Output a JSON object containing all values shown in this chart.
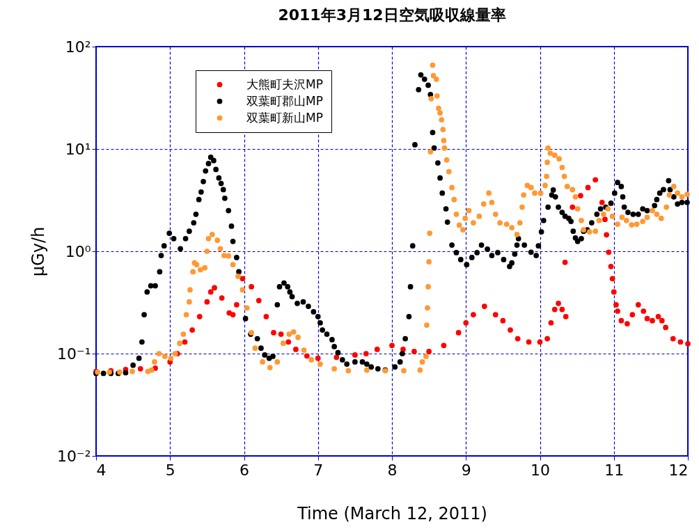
{
  "chart_data": {
    "type": "scatter",
    "title": "2011年3月12日空気吸収線量率",
    "xlabel": "Time (March 12, 2011)",
    "ylabel": "μGy/h",
    "xlim": [
      4,
      12
    ],
    "xticks": [
      4,
      5,
      6,
      7,
      8,
      9,
      10,
      11,
      12
    ],
    "ylim": [
      0.01,
      100
    ],
    "log": "y",
    "yticks": [
      {
        "value": 0.01,
        "label": "10⁻²"
      },
      {
        "value": 0.1,
        "label": "10⁻¹"
      },
      {
        "value": 1,
        "label": "10⁰"
      },
      {
        "value": 10,
        "label": "10¹"
      },
      {
        "value": 100,
        "label": "10²"
      }
    ],
    "grid": true,
    "legend": "top left",
    "marker": "circle",
    "series": [
      {
        "name": "大熊町夫沢MP",
        "color": "#ff0000",
        "x": [
          4.0,
          4.2,
          4.4,
          4.6,
          4.8,
          5.0,
          5.1,
          5.2,
          5.3,
          5.4,
          5.5,
          5.55,
          5.6,
          5.7,
          5.8,
          5.85,
          5.9,
          5.98,
          6.1,
          6.2,
          6.3,
          6.4,
          6.5,
          6.6,
          6.7,
          6.85,
          7.0,
          7.25,
          7.5,
          7.65,
          7.8,
          8.0,
          8.15,
          8.3,
          8.5,
          8.7,
          8.9,
          9.0,
          9.1,
          9.25,
          9.4,
          9.5,
          9.6,
          9.7,
          9.85,
          10.0,
          10.1,
          10.15,
          10.2,
          10.25,
          10.3,
          10.35,
          10.34,
          10.44,
          10.55,
          10.65,
          10.75,
          10.84,
          10.88,
          10.9,
          10.93,
          10.96,
          10.98,
          11.0,
          11.03,
          11.05,
          11.1,
          11.18,
          11.25,
          11.33,
          11.4,
          11.45,
          11.52,
          11.6,
          11.65,
          11.7,
          11.8,
          11.9,
          12.0
        ],
        "values": [
          0.067,
          0.068,
          0.07,
          0.071,
          0.072,
          0.083,
          0.1,
          0.13,
          0.17,
          0.23,
          0.32,
          0.4,
          0.44,
          0.35,
          0.25,
          0.24,
          0.3,
          0.54,
          0.45,
          0.33,
          0.23,
          0.16,
          0.155,
          0.13,
          0.11,
          0.095,
          0.09,
          0.092,
          0.097,
          0.1,
          0.11,
          0.12,
          0.11,
          0.105,
          0.105,
          0.12,
          0.16,
          0.2,
          0.24,
          0.29,
          0.24,
          0.21,
          0.17,
          0.14,
          0.13,
          0.13,
          0.14,
          0.2,
          0.27,
          0.31,
          0.27,
          0.23,
          0.78,
          2.7,
          3.5,
          4.2,
          5.0,
          3.0,
          2.05,
          1.45,
          0.98,
          0.71,
          0.54,
          0.4,
          0.3,
          0.26,
          0.21,
          0.196,
          0.24,
          0.3,
          0.26,
          0.22,
          0.21,
          0.23,
          0.21,
          0.18,
          0.14,
          0.13,
          0.125
        ]
      },
      {
        "name": "双葉町郡山MP",
        "color": "#000000",
        "x": [
          4.0,
          4.1,
          4.2,
          4.3,
          4.4,
          4.5,
          4.58,
          4.62,
          4.65,
          4.69,
          4.74,
          4.8,
          4.86,
          4.88,
          4.92,
          4.99,
          5.05,
          5.14,
          5.21,
          5.26,
          5.32,
          5.35,
          5.39,
          5.42,
          5.45,
          5.48,
          5.52,
          5.55,
          5.59,
          5.62,
          5.66,
          5.69,
          5.72,
          5.74,
          5.79,
          5.83,
          5.85,
          5.9,
          5.93,
          6.02,
          6.09,
          6.18,
          6.23,
          6.28,
          6.34,
          6.39,
          6.45,
          6.48,
          6.54,
          6.59,
          6.62,
          6.65,
          6.72,
          6.8,
          6.87,
          6.94,
          7.0,
          7.03,
          7.06,
          7.12,
          7.19,
          7.22,
          7.27,
          7.33,
          7.39,
          7.5,
          7.6,
          7.66,
          7.72,
          7.81,
          7.91,
          8.04,
          8.11,
          8.14,
          8.18,
          8.23,
          8.25,
          8.28,
          8.31,
          8.36,
          8.39,
          8.44,
          8.49,
          8.52,
          8.55,
          8.57,
          8.62,
          8.65,
          8.68,
          8.73,
          8.75,
          8.81,
          8.87,
          8.93,
          9.01,
          9.08,
          9.15,
          9.21,
          9.29,
          9.35,
          9.43,
          9.51,
          9.59,
          9.62,
          9.66,
          9.69,
          9.71,
          9.79,
          9.88,
          9.95,
          9.98,
          10.02,
          10.05,
          10.11,
          10.16,
          10.18,
          10.21,
          10.25,
          10.3,
          10.34,
          10.39,
          10.42,
          10.45,
          10.48,
          10.51,
          10.56,
          10.59,
          10.64,
          10.7,
          10.77,
          10.82,
          10.89,
          10.96,
          11.01,
          11.05,
          11.1,
          11.12,
          11.14,
          11.19,
          11.26,
          11.33,
          11.39,
          11.45,
          11.55,
          11.58,
          11.62,
          11.67,
          11.74,
          11.76,
          11.81,
          11.86,
          11.92,
          11.99
        ],
        "values": [
          0.064,
          0.064,
          0.064,
          0.064,
          0.065,
          0.077,
          0.09,
          0.13,
          0.24,
          0.4,
          0.46,
          0.46,
          0.63,
          0.91,
          1.13,
          1.5,
          1.33,
          1.06,
          1.33,
          1.57,
          1.9,
          2.3,
          3.2,
          3.8,
          4.8,
          6.1,
          7.2,
          8.3,
          7.7,
          6.3,
          5.2,
          4.6,
          4.0,
          3.3,
          2.5,
          1.76,
          1.25,
          0.87,
          0.63,
          0.22,
          0.155,
          0.14,
          0.113,
          0.097,
          0.09,
          0.094,
          0.3,
          0.45,
          0.49,
          0.45,
          0.4,
          0.36,
          0.31,
          0.32,
          0.29,
          0.256,
          0.23,
          0.2,
          0.17,
          0.155,
          0.137,
          0.117,
          0.102,
          0.087,
          0.079,
          0.083,
          0.083,
          0.079,
          0.074,
          0.071,
          0.069,
          0.074,
          0.083,
          0.1,
          0.14,
          0.23,
          0.45,
          1.13,
          11,
          38,
          53,
          48,
          42,
          34,
          14.5,
          10.2,
          7.3,
          5.2,
          3.7,
          2.6,
          1.93,
          1.15,
          0.97,
          0.83,
          0.74,
          0.87,
          0.97,
          1.15,
          1.05,
          0.91,
          0.97,
          0.83,
          0.71,
          0.77,
          0.94,
          1.15,
          1.33,
          1.15,
          0.98,
          0.91,
          1.13,
          1.55,
          2.0,
          2.7,
          3.55,
          3.97,
          3.4,
          2.7,
          2.4,
          2.2,
          2.1,
          1.96,
          1.57,
          1.35,
          1.25,
          1.33,
          1.57,
          1.62,
          1.9,
          2.3,
          2.6,
          2.7,
          2.95,
          3.7,
          4.7,
          4.3,
          3.4,
          2.7,
          2.4,
          2.3,
          2.3,
          2.6,
          2.5,
          2.8,
          3.2,
          3.7,
          4.0,
          4.9,
          4.0,
          3.4,
          2.9,
          3.0,
          3.0
        ]
      },
      {
        "name": "双葉町新山MP",
        "color": "#ff9933",
        "x": [
          4.02,
          4.18,
          4.32,
          4.49,
          4.7,
          4.75,
          4.79,
          4.85,
          4.93,
          5.01,
          5.07,
          5.13,
          5.18,
          5.22,
          5.26,
          5.27,
          5.31,
          5.33,
          5.36,
          5.41,
          5.47,
          5.5,
          5.52,
          5.57,
          5.64,
          5.68,
          5.73,
          5.79,
          5.85,
          5.92,
          5.98,
          6.04,
          6.1,
          6.15,
          6.25,
          6.35,
          6.45,
          6.53,
          6.61,
          6.67,
          6.73,
          6.81,
          6.91,
          7.03,
          7.22,
          7.41,
          7.66,
          7.91,
          8.16,
          8.38,
          8.41,
          8.46,
          8.47,
          8.48,
          8.49,
          8.5,
          8.51,
          8.52,
          8.53,
          8.55,
          8.56,
          8.6,
          8.61,
          8.63,
          8.65,
          8.67,
          8.69,
          8.7,
          8.71,
          8.74,
          8.77,
          8.81,
          8.84,
          8.87,
          8.91,
          8.96,
          8.99,
          9.04,
          9.1,
          9.18,
          9.24,
          9.31,
          9.35,
          9.4,
          9.46,
          9.55,
          9.62,
          9.69,
          9.73,
          9.76,
          9.78,
          9.83,
          9.88,
          9.93,
          10.01,
          10.07,
          10.09,
          10.1,
          10.11,
          10.14,
          10.2,
          10.26,
          10.3,
          10.33,
          10.37,
          10.44,
          10.48,
          10.51,
          10.56,
          10.59,
          10.67,
          10.75,
          10.8,
          10.86,
          10.92,
          10.98,
          11.05,
          11.11,
          11.17,
          11.24,
          11.31,
          11.39,
          11.45,
          11.52,
          11.58,
          11.64,
          11.71,
          11.75,
          11.81,
          11.86,
          11.92,
          11.99
        ],
        "values": [
          0.066,
          0.066,
          0.066,
          0.067,
          0.067,
          0.069,
          0.083,
          0.1,
          0.094,
          0.09,
          0.1,
          0.126,
          0.155,
          0.24,
          0.32,
          0.42,
          0.63,
          0.77,
          0.74,
          0.66,
          0.69,
          1.0,
          1.33,
          1.46,
          1.28,
          1.06,
          0.91,
          0.9,
          0.74,
          0.57,
          0.42,
          0.28,
          0.16,
          0.113,
          0.083,
          0.073,
          0.083,
          0.126,
          0.155,
          0.163,
          0.144,
          0.108,
          0.087,
          0.079,
          0.071,
          0.068,
          0.069,
          0.068,
          0.068,
          0.069,
          0.083,
          0.094,
          0.19,
          0.28,
          0.45,
          0.79,
          1.5,
          9.4,
          31,
          66,
          52,
          48,
          33,
          25,
          22.5,
          19.3,
          15.5,
          12.1,
          10.2,
          7.8,
          6.0,
          4.2,
          3.2,
          2.3,
          1.8,
          1.62,
          2.1,
          2.5,
          1.9,
          2.2,
          2.9,
          3.7,
          3.0,
          2.3,
          1.9,
          1.84,
          1.7,
          1.46,
          1.9,
          2.7,
          3.55,
          4.4,
          4.2,
          3.7,
          3.7,
          4.4,
          5.4,
          7.4,
          10.2,
          9.1,
          8.7,
          8.0,
          6.6,
          5.4,
          4.3,
          4.0,
          3.4,
          2.6,
          2.0,
          1.62,
          1.55,
          1.57,
          2.0,
          2.3,
          2.6,
          2.2,
          1.84,
          2.15,
          2.0,
          1.81,
          1.84,
          1.96,
          2.15,
          2.5,
          2.3,
          2.1,
          2.7,
          3.55,
          4.3,
          3.7,
          3.4,
          3.6
        ]
      }
    ]
  }
}
